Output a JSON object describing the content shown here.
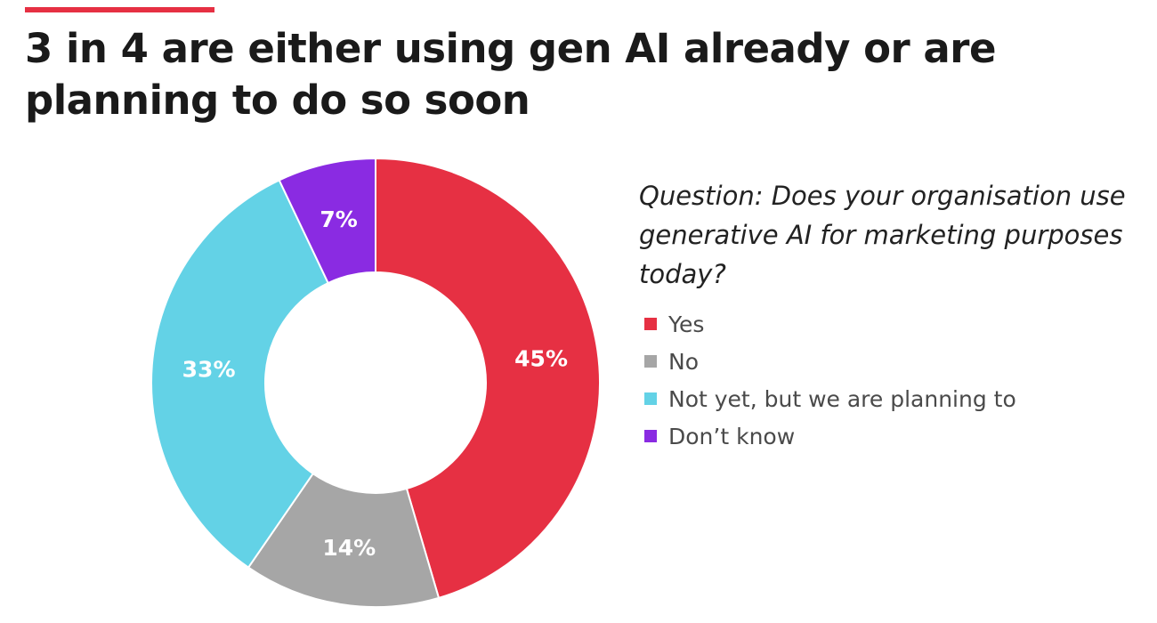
{
  "header": {
    "accent_color": "#e63043",
    "title": "3 in 4 are either using gen AI already or are planning to do so soon"
  },
  "question": "Question: Does your organisation use generative AI for marketing purposes today?",
  "chart_data": {
    "type": "pie",
    "donut": true,
    "start": "12 o'clock",
    "direction": "clockwise",
    "unit": "%",
    "slices": [
      {
        "label": "Yes",
        "value": 45,
        "value_label": "45%",
        "color": "#e63043"
      },
      {
        "label": "No",
        "value": 14,
        "value_label": "14%",
        "color": "#a6a6a6"
      },
      {
        "label": "Not yet, but we are planning to",
        "value": 33,
        "value_label": "33%",
        "color": "#63d2e6"
      },
      {
        "label": "Don’t know",
        "value": 7,
        "value_label": "7%",
        "color": "#8a2be2"
      }
    ],
    "legend_position": "right"
  }
}
